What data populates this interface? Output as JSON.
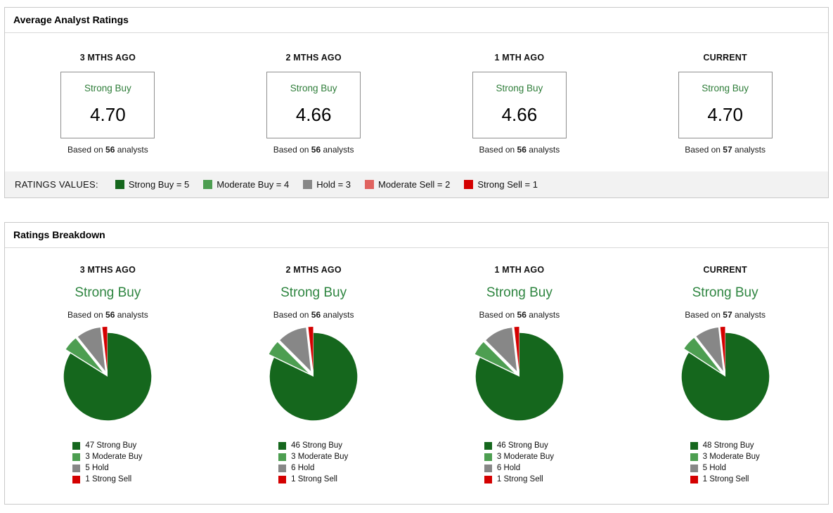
{
  "strings": {
    "based_on": "Based on",
    "analysts": "analysts"
  },
  "colors": {
    "strong_buy": "#15671d",
    "moderate_buy": "#4d9e51",
    "hold": "#878787",
    "moderate_sell": "#e0635f",
    "strong_sell": "#d40000",
    "rating_text_green": "#2e7d39"
  },
  "panel_average": {
    "title": "Average Analyst Ratings",
    "columns": [
      {
        "period": "3 MTHS AGO",
        "rating": "Strong Buy",
        "score": "4.70",
        "analysts": "56"
      },
      {
        "period": "2 MTHS AGO",
        "rating": "Strong Buy",
        "score": "4.66",
        "analysts": "56"
      },
      {
        "period": "1 MTH AGO",
        "rating": "Strong Buy",
        "score": "4.66",
        "analysts": "56"
      },
      {
        "period": "CURRENT",
        "rating": "Strong Buy",
        "score": "4.70",
        "analysts": "57"
      }
    ],
    "ratings_values_label": "RATINGS VALUES:",
    "legend": [
      {
        "label": "Strong Buy = 5",
        "color": "#15671d"
      },
      {
        "label": "Moderate Buy = 4",
        "color": "#4d9e51"
      },
      {
        "label": "Hold = 3",
        "color": "#878787"
      },
      {
        "label": "Moderate Sell = 2",
        "color": "#e0635f"
      },
      {
        "label": "Strong Sell = 1",
        "color": "#d40000"
      }
    ]
  },
  "panel_breakdown": {
    "title": "Ratings Breakdown",
    "columns": [
      {
        "period": "3 MTHS AGO",
        "rating": "Strong Buy",
        "analysts": "56"
      },
      {
        "period": "2 MTHS AGO",
        "rating": "Strong Buy",
        "analysts": "56"
      },
      {
        "period": "1 MTH AGO",
        "rating": "Strong Buy",
        "analysts": "56"
      },
      {
        "period": "CURRENT",
        "rating": "Strong Buy",
        "analysts": "57"
      }
    ]
  },
  "chart_data": [
    {
      "type": "pie",
      "title": "3 MTHS AGO",
      "total": 56,
      "slices": [
        {
          "label": "Strong Buy",
          "value": 47,
          "color": "#15671d",
          "exploded": false
        },
        {
          "label": "Moderate Buy",
          "value": 3,
          "color": "#4d9e51",
          "exploded": true
        },
        {
          "label": "Hold",
          "value": 5,
          "color": "#878787",
          "exploded": true
        },
        {
          "label": "Strong Sell",
          "value": 1,
          "color": "#d40000",
          "exploded": true
        }
      ]
    },
    {
      "type": "pie",
      "title": "2 MTHS AGO",
      "total": 56,
      "slices": [
        {
          "label": "Strong Buy",
          "value": 46,
          "color": "#15671d",
          "exploded": false
        },
        {
          "label": "Moderate Buy",
          "value": 3,
          "color": "#4d9e51",
          "exploded": true
        },
        {
          "label": "Hold",
          "value": 6,
          "color": "#878787",
          "exploded": true
        },
        {
          "label": "Strong Sell",
          "value": 1,
          "color": "#d40000",
          "exploded": true
        }
      ]
    },
    {
      "type": "pie",
      "title": "1 MTH AGO",
      "total": 56,
      "slices": [
        {
          "label": "Strong Buy",
          "value": 46,
          "color": "#15671d",
          "exploded": false
        },
        {
          "label": "Moderate Buy",
          "value": 3,
          "color": "#4d9e51",
          "exploded": true
        },
        {
          "label": "Hold",
          "value": 6,
          "color": "#878787",
          "exploded": true
        },
        {
          "label": "Strong Sell",
          "value": 1,
          "color": "#d40000",
          "exploded": true
        }
      ]
    },
    {
      "type": "pie",
      "title": "CURRENT",
      "total": 57,
      "slices": [
        {
          "label": "Strong Buy",
          "value": 48,
          "color": "#15671d",
          "exploded": false
        },
        {
          "label": "Moderate Buy",
          "value": 3,
          "color": "#4d9e51",
          "exploded": true
        },
        {
          "label": "Hold",
          "value": 5,
          "color": "#878787",
          "exploded": true
        },
        {
          "label": "Strong Sell",
          "value": 1,
          "color": "#d40000",
          "exploded": true
        }
      ]
    },
    {
      "type": "table",
      "title": "Average Analyst Ratings",
      "columns": [
        "3 MTHS AGO",
        "2 MTHS AGO",
        "1 MTH AGO",
        "CURRENT"
      ],
      "rows": [
        [
          "Strong Buy",
          "Strong Buy",
          "Strong Buy",
          "Strong Buy"
        ],
        [
          "4.70",
          "4.66",
          "4.66",
          "4.70"
        ],
        [
          "56",
          "56",
          "56",
          "57"
        ]
      ]
    }
  ]
}
